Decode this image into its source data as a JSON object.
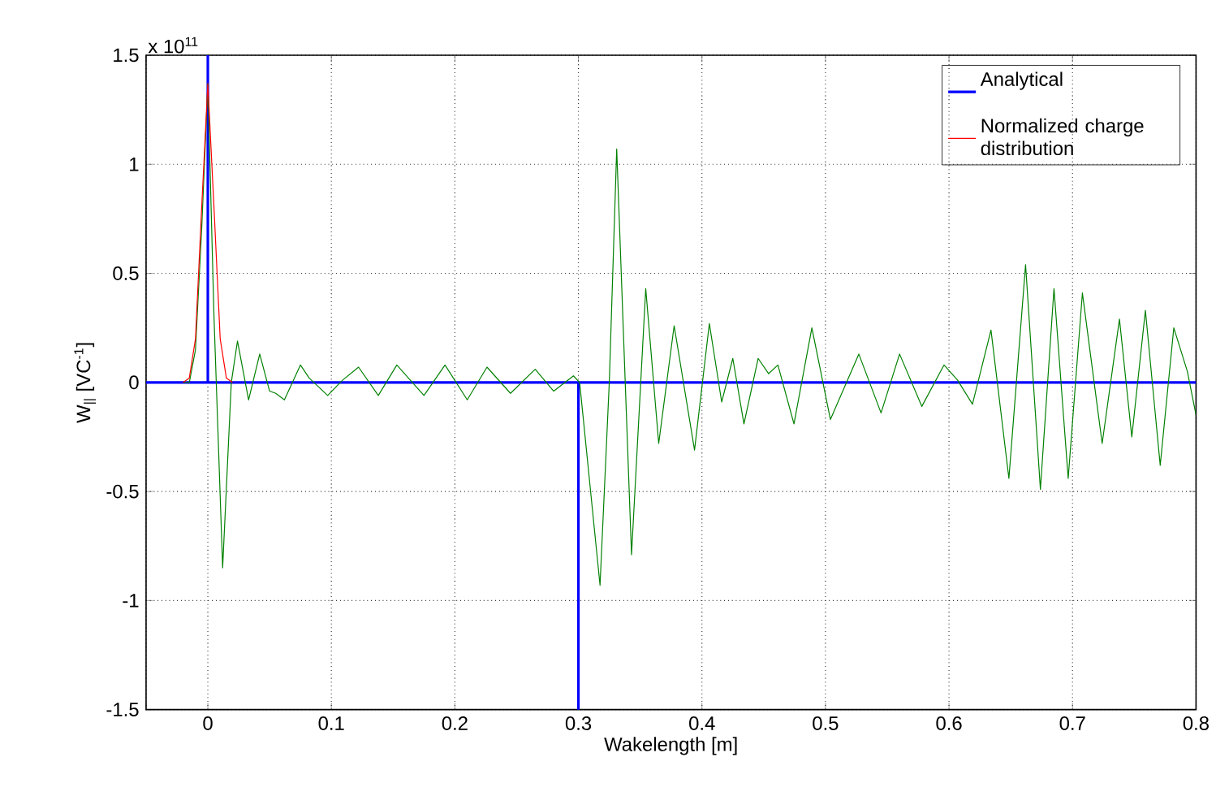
{
  "chart_data": {
    "type": "line",
    "xlabel": "Wakelength [m]",
    "ylabel": "W$_{||}$ [VC$^{-1}$]",
    "annotations": [
      "x 10$^{11}$"
    ],
    "xlim": [
      -0.05,
      0.8
    ],
    "ylim": [
      -1.5,
      1.5
    ],
    "xticks": [
      {
        "value": -0.05,
        "label": null
      },
      0,
      0.1,
      0.2,
      0.3,
      0.4,
      0.5,
      0.6,
      0.7,
      0.8
    ],
    "yticks": [
      -1.5,
      -1,
      -0.5,
      0,
      0.5,
      1,
      1.5
    ],
    "grid": true,
    "legend": "top right",
    "line_style": "solid",
    "marker": "none",
    "series": [
      {
        "name": "Analytical",
        "color": "#0000ff",
        "x": [
          -0.05,
          0,
          0,
          0,
          0.3,
          0.3,
          0.3,
          0.8
        ],
        "values": [
          0,
          0,
          1.5,
          0,
          0,
          -1.5,
          0,
          0
        ]
      },
      {
        "color": "#008000",
        "x": [
          -0.02,
          -0.015,
          -0.01,
          -0.005,
          0,
          0.005,
          0.012,
          0.019,
          0.024,
          0.033,
          0.042,
          0.05,
          0.055,
          0.062,
          0.075,
          0.082,
          0.097,
          0.109,
          0.122,
          0.138,
          0.153,
          0.175,
          0.192,
          0.21,
          0.226,
          0.245,
          0.265,
          0.28,
          0.296,
          0.301,
          0.3175,
          0.325,
          0.331,
          0.343,
          0.3545,
          0.365,
          0.3775,
          0.394,
          0.406,
          0.416,
          0.425,
          0.434,
          0.4455,
          0.454,
          0.4615,
          0.4745,
          0.489,
          0.504,
          0.527,
          0.545,
          0.56,
          0.578,
          0.596,
          0.607,
          0.619,
          0.634,
          0.6485,
          0.662,
          0.674,
          0.685,
          0.6965,
          0.708,
          0.724,
          0.738,
          0.748,
          0.759,
          0.771,
          0.782,
          0.793,
          0.8
        ],
        "values": [
          0,
          0,
          0.15,
          0.7,
          1.37,
          0.3,
          -0.85,
          0,
          0.19,
          -0.08,
          0.13,
          -0.04,
          -0.05,
          -0.08,
          0.08,
          0.02,
          -0.06,
          0.01,
          0.07,
          -0.06,
          0.08,
          -0.06,
          0.08,
          -0.08,
          0.07,
          -0.05,
          0.06,
          -0.04,
          0.03,
          0,
          -0.93,
          0,
          1.07,
          -0.79,
          0.43,
          -0.28,
          0.26,
          -0.31,
          0.27,
          -0.09,
          0.11,
          -0.19,
          0.11,
          0.04,
          0.08,
          -0.19,
          0.25,
          -0.17,
          0.13,
          -0.14,
          0.13,
          -0.11,
          0.08,
          0.01,
          -0.1,
          0.24,
          -0.44,
          0.54,
          -0.49,
          0.43,
          -0.44,
          0.41,
          -0.28,
          0.29,
          -0.25,
          0.33,
          -0.38,
          0.25,
          0.05,
          -0.15
        ]
      },
      {
        "name": "Normalized charge distribution",
        "color": "#ff0000",
        "x": [
          -0.02,
          -0.015,
          -0.01,
          -0.005,
          0,
          0.005,
          0.01,
          0.015,
          0.02
        ],
        "values": [
          0,
          0.02,
          0.2,
          0.8,
          1.37,
          0.8,
          0.2,
          0.02,
          0
        ]
      }
    ]
  }
}
